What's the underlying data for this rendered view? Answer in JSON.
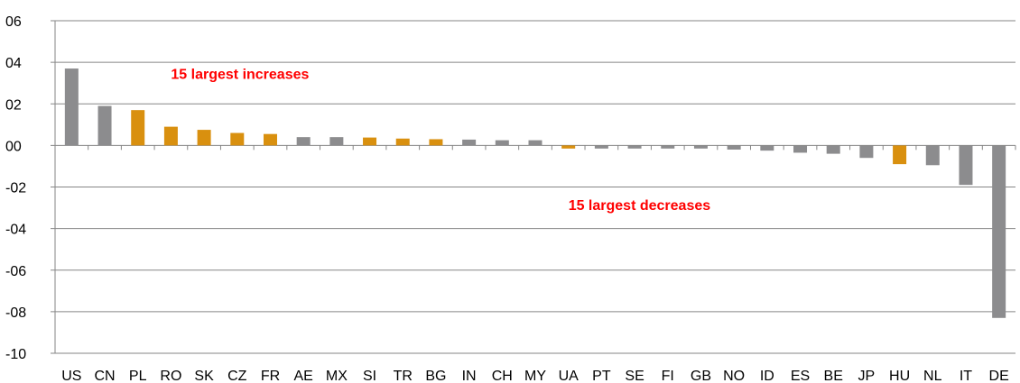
{
  "chart_data": {
    "type": "bar",
    "title": "",
    "xlabel": "",
    "ylabel": "",
    "ylim": [
      -10,
      6
    ],
    "yticks": [
      6,
      4,
      2,
      0,
      -2,
      -4,
      -6,
      -8,
      -10
    ],
    "ytick_labels": [
      "06",
      "04",
      "02",
      "00",
      "-02",
      "-04",
      "-06",
      "-08",
      "-10"
    ],
    "grid": true,
    "legend": "none",
    "categories": [
      "US",
      "CN",
      "PL",
      "RO",
      "SK",
      "CZ",
      "FR",
      "AE",
      "MX",
      "SI",
      "TR",
      "BG",
      "IN",
      "CH",
      "MY",
      "UA",
      "PT",
      "SE",
      "FI",
      "GB",
      "NO",
      "ID",
      "ES",
      "BE",
      "JP",
      "HU",
      "NL",
      "IT",
      "DE"
    ],
    "values": [
      3.7,
      1.9,
      1.7,
      0.9,
      0.75,
      0.6,
      0.55,
      0.4,
      0.4,
      0.38,
      0.33,
      0.3,
      0.28,
      0.25,
      0.25,
      -0.15,
      -0.15,
      -0.15,
      -0.15,
      -0.15,
      -0.2,
      -0.25,
      -0.35,
      -0.4,
      -0.6,
      -0.9,
      -0.95,
      -1.9,
      -8.3
    ],
    "bar_groups": [
      "grey",
      "grey",
      "orange",
      "orange",
      "orange",
      "orange",
      "orange",
      "grey",
      "grey",
      "orange",
      "orange",
      "orange",
      "grey",
      "grey",
      "grey",
      "orange",
      "grey",
      "grey",
      "grey",
      "grey",
      "grey",
      "grey",
      "grey",
      "grey",
      "grey",
      "orange",
      "grey",
      "grey",
      "grey"
    ],
    "colors": {
      "grey": "#8c8c8e",
      "orange": "#d9900f",
      "grid": "#868686",
      "annotation": "#ff0000"
    },
    "annotations": [
      {
        "text": "15 largest increases",
        "x_category": "RO",
        "y": 3.2
      },
      {
        "text": "15 largest decreases",
        "x_category": "UA",
        "y": -3.1
      }
    ]
  }
}
